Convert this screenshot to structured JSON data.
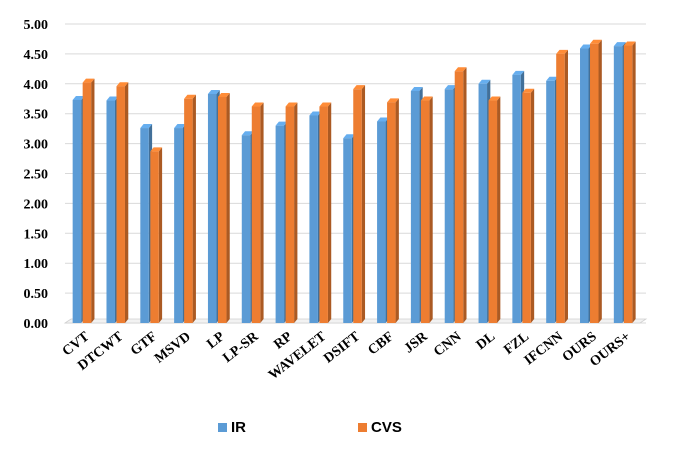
{
  "chart_data": {
    "type": "bar",
    "title": "",
    "xlabel": "",
    "ylabel": "",
    "ylim": [
      0,
      5
    ],
    "ytick_step": 0.5,
    "ytick_decimals": 2,
    "grid": true,
    "legend_position": "bottom",
    "style": "3d-bars",
    "categories": [
      "CVT",
      "DTCWT",
      "GTF",
      "MSVD",
      "LP",
      "LP-SR",
      "RP",
      "WAVELET",
      "DSIFT",
      "CBF",
      "JSR",
      "CNN",
      "DL",
      "FZL",
      "IFCNN",
      "OURS",
      "OURS+"
    ],
    "series": [
      {
        "name": "IR",
        "color": "#5B9BD5",
        "values": [
          3.73,
          3.72,
          3.26,
          3.26,
          3.83,
          3.14,
          3.3,
          3.47,
          3.09,
          3.37,
          3.88,
          3.91,
          4.0,
          4.15,
          4.05,
          4.59,
          4.63
        ]
      },
      {
        "name": "CVS",
        "color": "#ED7D31",
        "values": [
          4.02,
          3.96,
          2.87,
          3.75,
          3.78,
          3.62,
          3.62,
          3.62,
          3.91,
          3.69,
          3.72,
          4.21,
          3.72,
          3.85,
          4.5,
          4.67,
          4.64
        ]
      }
    ]
  }
}
